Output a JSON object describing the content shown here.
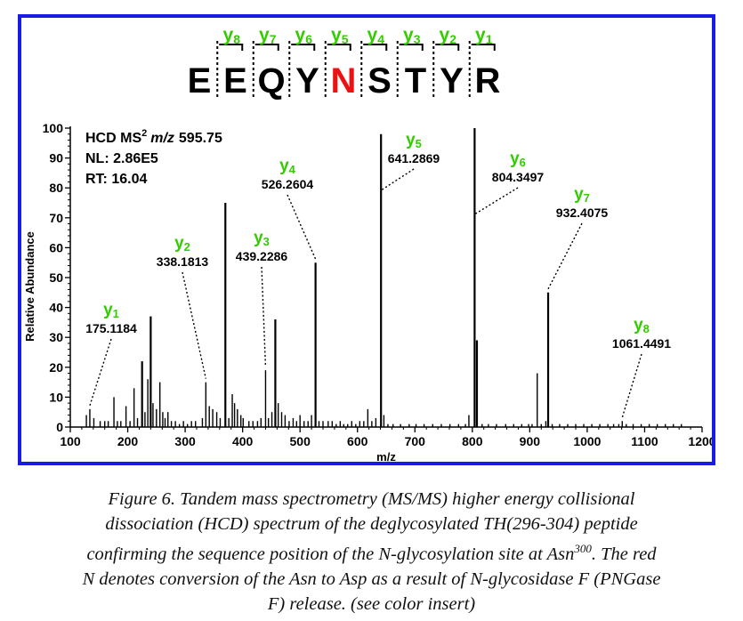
{
  "chart_data": {
    "type": "bar",
    "xlabel": "m/z",
    "ylabel": "Relative Abundance",
    "xlim": [
      100,
      1200
    ],
    "ylim": [
      0,
      100
    ],
    "xticks": [
      100,
      200,
      300,
      400,
      500,
      600,
      700,
      800,
      900,
      1000,
      1100,
      1200
    ],
    "yticks": [
      0,
      10,
      20,
      30,
      40,
      50,
      60,
      70,
      80,
      90,
      100
    ],
    "info": {
      "line1_prefix": "HCD MS",
      "line1_sup": "2",
      "line1_mz": "m/z",
      "line1_value": "595.75",
      "line2": "NL: 2.86E5",
      "line3": "RT: 16.04"
    },
    "sequence": [
      "E",
      "E",
      "Q",
      "Y",
      "N",
      "S",
      "T",
      "Y",
      "R"
    ],
    "highlight_index": 4,
    "y_ion_labels": [
      {
        "sub": "8"
      },
      {
        "sub": "7"
      },
      {
        "sub": "6"
      },
      {
        "sub": "5"
      },
      {
        "sub": "4"
      },
      {
        "sub": "3"
      },
      {
        "sub": "2"
      },
      {
        "sub": "1"
      }
    ],
    "annotations": [
      {
        "ion": "y",
        "sub": "1",
        "mz": "175.1184",
        "x": 134,
        "y": 6
      },
      {
        "ion": "y",
        "sub": "2",
        "mz": "338.1813",
        "x": 336,
        "y": 15
      },
      {
        "ion": "y",
        "sub": "3",
        "mz": "439.2286",
        "x": 440,
        "y": 19
      },
      {
        "ion": "y",
        "sub": "4",
        "mz": "526.2604",
        "x": 527,
        "y": 55
      },
      {
        "ion": "y",
        "sub": "5",
        "mz": "641.2869",
        "x": 641,
        "y": 78
      },
      {
        "ion": "y",
        "sub": "6",
        "mz": "804.3497",
        "x": 804,
        "y": 70
      },
      {
        "ion": "y",
        "sub": "7",
        "mz": "932.4075",
        "x": 932,
        "y": 45
      },
      {
        "ion": "y",
        "sub": "8",
        "mz": "1061.4491",
        "x": 1061,
        "y": 2
      }
    ],
    "peaks": [
      [
        128,
        4
      ],
      [
        134,
        6
      ],
      [
        141,
        3
      ],
      [
        152,
        2
      ],
      [
        160,
        2
      ],
      [
        166,
        2
      ],
      [
        176,
        10
      ],
      [
        182,
        2
      ],
      [
        188,
        2
      ],
      [
        197,
        7
      ],
      [
        204,
        2
      ],
      [
        211,
        13
      ],
      [
        217,
        3
      ],
      [
        225,
        22
      ],
      [
        230,
        5
      ],
      [
        235,
        16
      ],
      [
        240,
        37
      ],
      [
        244,
        8
      ],
      [
        250,
        6
      ],
      [
        256,
        15
      ],
      [
        261,
        5
      ],
      [
        265,
        3
      ],
      [
        270,
        5
      ],
      [
        276,
        2
      ],
      [
        283,
        2
      ],
      [
        290,
        1
      ],
      [
        297,
        2
      ],
      [
        304,
        1
      ],
      [
        311,
        2
      ],
      [
        318,
        2
      ],
      [
        330,
        3
      ],
      [
        336,
        15
      ],
      [
        342,
        7
      ],
      [
        348,
        6
      ],
      [
        355,
        5
      ],
      [
        361,
        3
      ],
      [
        370,
        75
      ],
      [
        376,
        3
      ],
      [
        382,
        11
      ],
      [
        386,
        8
      ],
      [
        391,
        6
      ],
      [
        397,
        4
      ],
      [
        401,
        3
      ],
      [
        411,
        2
      ],
      [
        418,
        2
      ],
      [
        426,
        2
      ],
      [
        432,
        3
      ],
      [
        440,
        19
      ],
      [
        445,
        3
      ],
      [
        451,
        5
      ],
      [
        457,
        36
      ],
      [
        462,
        8
      ],
      [
        468,
        5
      ],
      [
        474,
        4
      ],
      [
        481,
        2
      ],
      [
        488,
        3
      ],
      [
        494,
        2
      ],
      [
        500,
        4
      ],
      [
        507,
        2
      ],
      [
        514,
        2
      ],
      [
        520,
        4
      ],
      [
        527,
        55
      ],
      [
        533,
        2
      ],
      [
        540,
        2
      ],
      [
        549,
        2
      ],
      [
        556,
        2
      ],
      [
        563,
        1
      ],
      [
        570,
        2
      ],
      [
        576,
        1
      ],
      [
        583,
        1
      ],
      [
        590,
        2
      ],
      [
        597,
        1
      ],
      [
        604,
        2
      ],
      [
        611,
        2
      ],
      [
        618,
        6
      ],
      [
        625,
        2
      ],
      [
        632,
        3
      ],
      [
        641,
        98
      ],
      [
        646,
        4
      ],
      [
        653,
        1
      ],
      [
        662,
        1
      ],
      [
        675,
        1
      ],
      [
        690,
        1
      ],
      [
        702,
        1
      ],
      [
        716,
        1
      ],
      [
        731,
        1
      ],
      [
        746,
        1
      ],
      [
        761,
        1
      ],
      [
        776,
        1
      ],
      [
        788,
        1
      ],
      [
        794,
        4
      ],
      [
        804,
        100
      ],
      [
        808,
        29
      ],
      [
        817,
        1
      ],
      [
        828,
        1
      ],
      [
        842,
        1
      ],
      [
        858,
        1
      ],
      [
        872,
        1
      ],
      [
        886,
        1
      ],
      [
        898,
        1
      ],
      [
        904,
        1
      ],
      [
        913,
        18
      ],
      [
        920,
        1
      ],
      [
        928,
        2
      ],
      [
        932,
        45
      ],
      [
        939,
        1
      ],
      [
        952,
        1
      ],
      [
        966,
        1
      ],
      [
        980,
        1
      ],
      [
        994,
        1
      ],
      [
        1008,
        1
      ],
      [
        1022,
        1
      ],
      [
        1036,
        1
      ],
      [
        1046,
        1
      ],
      [
        1055,
        1
      ],
      [
        1061,
        2
      ],
      [
        1068,
        1
      ],
      [
        1080,
        1
      ],
      [
        1094,
        1
      ],
      [
        1108,
        1
      ],
      [
        1122,
        1
      ],
      [
        1136,
        1
      ],
      [
        1150,
        1
      ],
      [
        1164,
        1
      ]
    ],
    "colors": {
      "frame": "#1a1ae6",
      "ion": "#33cc00",
      "highlight": "#ee1111",
      "bars": "#000000"
    }
  },
  "caption": {
    "line1": "Figure 6. Tandem mass spectrometry (MS/MS) higher energy collisional",
    "line2": "dissociation (HCD) spectrum of the deglycosylated TH(296-304) peptide",
    "line3a": "confirming the sequence position of the N-glycosylation site at Asn",
    "line3sup": "300",
    "line3b": ". The red",
    "line4": "N denotes conversion of the Asn to Asp as a result of N-glycosidase F (PNGase",
    "line5": "F) release.  (see color insert)"
  }
}
